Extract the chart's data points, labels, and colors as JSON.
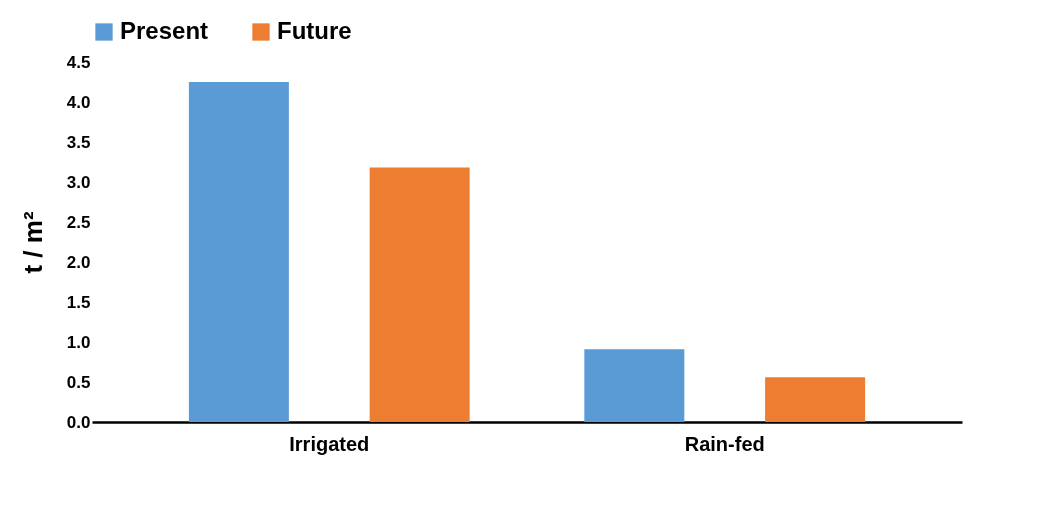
{
  "chart_data": {
    "type": "bar",
    "ylabel": "t / m²",
    "categories": [
      "Irrigated",
      "Rain-fed"
    ],
    "series": [
      {
        "name": "Present",
        "color": "#5b9bd5",
        "values": [
          4.25,
          0.91
        ]
      },
      {
        "name": "Future",
        "color": "#ed7d31",
        "values": [
          3.18,
          0.56
        ]
      }
    ],
    "ylim": [
      0,
      4.5
    ],
    "yticks": [
      {
        "value": 0,
        "label": "0.0"
      },
      {
        "value": 0.5,
        "label": "0.5"
      },
      {
        "value": 1,
        "label": "1.0"
      },
      {
        "value": 1.5,
        "label": "1.5"
      },
      {
        "value": 2,
        "label": "2.0"
      },
      {
        "value": 2.5,
        "label": "2.5"
      },
      {
        "value": 3,
        "label": "3.0"
      },
      {
        "value": 3.5,
        "label": "3.5"
      },
      {
        "value": 4,
        "label": "4.0"
      },
      {
        "value": 4.5,
        "label": "4.5"
      }
    ],
    "grid": false,
    "legend": "top"
  }
}
